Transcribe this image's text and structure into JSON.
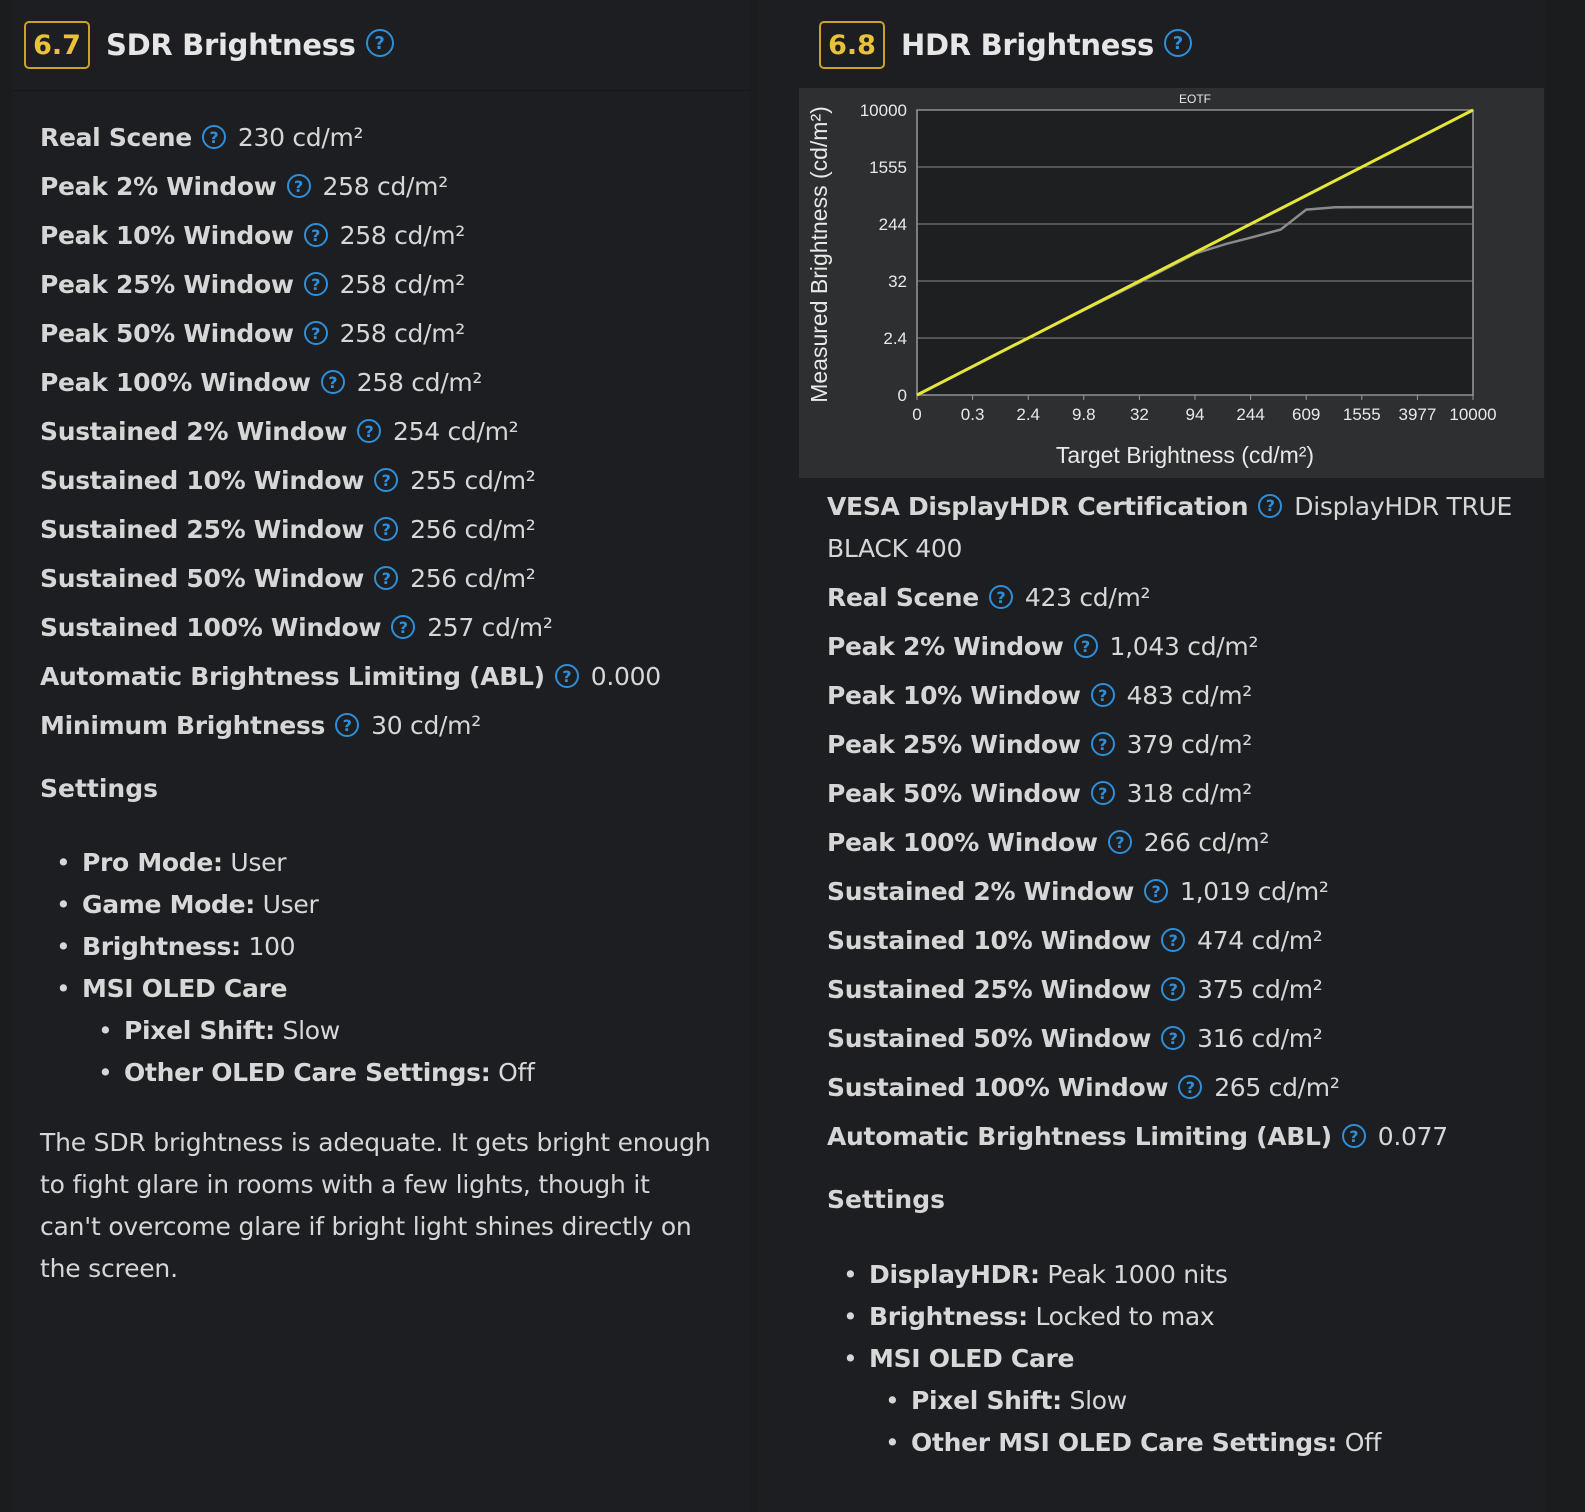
{
  "sdr": {
    "score": "6.7",
    "title": "SDR Brightness",
    "rows": [
      {
        "label": "Real Scene",
        "value": "230 cd/m²"
      },
      {
        "label": "Peak 2% Window",
        "value": "258 cd/m²"
      },
      {
        "label": "Peak 10% Window",
        "value": "258 cd/m²"
      },
      {
        "label": "Peak 25% Window",
        "value": "258 cd/m²"
      },
      {
        "label": "Peak 50% Window",
        "value": "258 cd/m²"
      },
      {
        "label": "Peak 100% Window",
        "value": "258 cd/m²"
      },
      {
        "label": "Sustained 2% Window",
        "value": "254 cd/m²"
      },
      {
        "label": "Sustained 10% Window",
        "value": "255 cd/m²"
      },
      {
        "label": "Sustained 25% Window",
        "value": "256 cd/m²"
      },
      {
        "label": "Sustained 50% Window",
        "value": "256 cd/m²"
      },
      {
        "label": "Sustained 100% Window",
        "value": "257 cd/m²"
      },
      {
        "label": "Automatic Brightness Limiting (ABL)",
        "value": "0.000"
      },
      {
        "label": "Minimum Brightness",
        "value": "30 cd/m²"
      }
    ],
    "settings_heading": "Settings",
    "settings": [
      {
        "key": "Pro Mode:",
        "value": "User"
      },
      {
        "key": "Game Mode:",
        "value": "User"
      },
      {
        "key": "Brightness:",
        "value": "100"
      },
      {
        "key": "MSI OLED Care",
        "value": ""
      },
      {
        "key": "Pixel Shift:",
        "value": "Slow",
        "sub": true
      },
      {
        "key": "Other OLED Care Settings:",
        "value": "Off",
        "sub": true
      }
    ],
    "description": "The SDR brightness is adequate. It gets bright enough to fight glare in rooms with a few lights, though it can't overcome glare if bright light shines directly on the screen."
  },
  "hdr": {
    "score": "6.8",
    "title": "HDR Brightness",
    "certification": {
      "label": "VESA DisplayHDR Certification",
      "value": "DisplayHDR TRUE BLACK 400"
    },
    "rows": [
      {
        "label": "Real Scene",
        "value": "423 cd/m²"
      },
      {
        "label": "Peak 2% Window",
        "value": "1,043 cd/m²"
      },
      {
        "label": "Peak 10% Window",
        "value": "483 cd/m²"
      },
      {
        "label": "Peak 25% Window",
        "value": "379 cd/m²"
      },
      {
        "label": "Peak 50% Window",
        "value": "318 cd/m²"
      },
      {
        "label": "Peak 100% Window",
        "value": "266 cd/m²"
      },
      {
        "label": "Sustained 2% Window",
        "value": "1,019 cd/m²"
      },
      {
        "label": "Sustained 10% Window",
        "value": "474 cd/m²"
      },
      {
        "label": "Sustained 25% Window",
        "value": "375 cd/m²"
      },
      {
        "label": "Sustained 50% Window",
        "value": "316 cd/m²"
      },
      {
        "label": "Sustained 100% Window",
        "value": "265 cd/m²"
      },
      {
        "label": "Automatic Brightness Limiting (ABL)",
        "value": "0.077"
      }
    ],
    "settings_heading": "Settings",
    "settings": [
      {
        "key": "DisplayHDR:",
        "value": "Peak 1000 nits"
      },
      {
        "key": "Brightness:",
        "value": "Locked to max"
      },
      {
        "key": "MSI OLED Care",
        "value": ""
      },
      {
        "key": "Pixel Shift:",
        "value": "Slow",
        "sub": true
      },
      {
        "key": "Other MSI OLED Care Settings:",
        "value": "Off",
        "sub": true
      }
    ]
  },
  "help_icon": "question-circle-icon",
  "colors": {
    "accent": "#c9a227",
    "help": "#2e8fd8",
    "target_line": "#e6e63a",
    "measured_line": "#8a8a8a"
  },
  "chart_data": {
    "type": "line",
    "title": "EOTF",
    "xlabel": "Target Brightness (cd/m²)",
    "ylabel": "Measured Brightness (cd/m²)",
    "x_ticks": [
      "0",
      "0.3",
      "2.4",
      "9.8",
      "32",
      "94",
      "244",
      "609",
      "1555",
      "3977",
      "10000"
    ],
    "y_ticks": [
      "0",
      "2.4",
      "32",
      "244",
      "1555",
      "10000"
    ],
    "grid": "horizontal",
    "series": [
      {
        "name": "",
        "color": "#e6e63a",
        "x": [
          0,
          10000
        ],
        "y": [
          0,
          10000
        ]
      },
      {
        "name": "",
        "color": "#8a8a8a",
        "x": [
          0,
          2.4,
          32,
          94,
          160,
          244,
          400,
          609,
          1000,
          1555,
          3977,
          10000
        ],
        "y": [
          0,
          2.4,
          30,
          85,
          120,
          150,
          200,
          390,
          420,
          423,
          423,
          423
        ]
      }
    ]
  }
}
